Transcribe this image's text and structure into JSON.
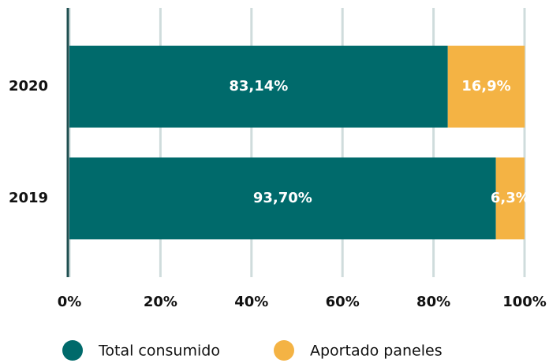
{
  "chart_data": {
    "type": "stacked-barh",
    "categories": [
      "2020",
      "2019"
    ],
    "series": [
      {
        "name": "Total consumido",
        "color": "#006a6b",
        "values": [
          83.14,
          93.7
        ],
        "value_labels": [
          "83,14%",
          "93,70%"
        ]
      },
      {
        "name": "Aportado paneles",
        "color": "#f4b344",
        "values": [
          16.9,
          6.3
        ],
        "value_labels": [
          "16,9%",
          "6,3%"
        ]
      }
    ],
    "xlim": [
      0,
      100
    ],
    "xticks": [
      {
        "value": 0,
        "label": "0%"
      },
      {
        "value": 20,
        "label": "20%"
      },
      {
        "value": 40,
        "label": "40%"
      },
      {
        "value": 60,
        "label": "60%"
      },
      {
        "value": 80,
        "label": "80%"
      },
      {
        "value": 100,
        "label": "100%"
      }
    ],
    "grid": true,
    "legend": "bottom"
  }
}
